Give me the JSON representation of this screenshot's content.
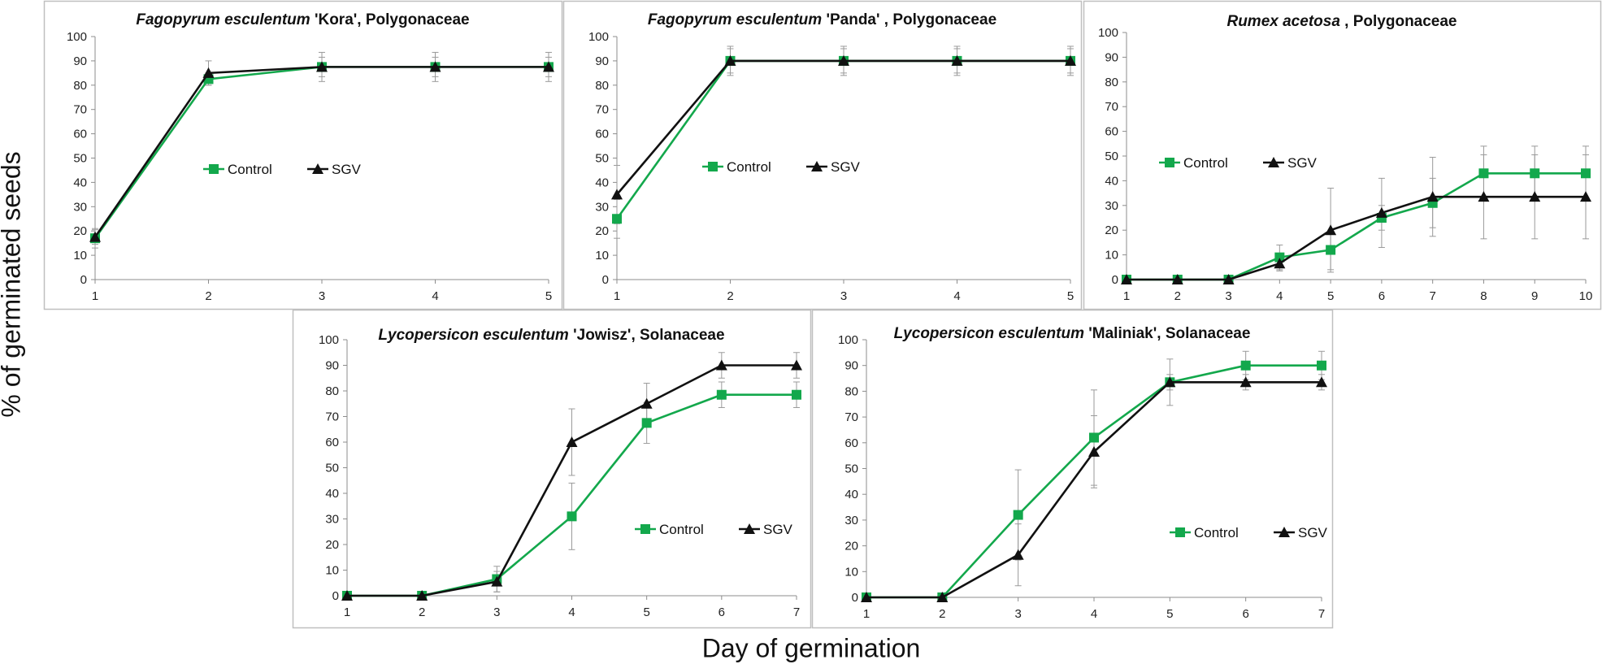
{
  "figure": {
    "ylabel": "% of germinated seeds",
    "xlabel": "Day of germination"
  },
  "colors": {
    "control": "#13a84c",
    "sgv": "#111111",
    "errorbar": "#9a9a9a",
    "frame": "#bfbfbf"
  },
  "chart_data": [
    {
      "type": "line",
      "title_species": "Fagopyrum esculentum",
      "title_rest": " 'Kora', Polygonaceae",
      "x": [
        1,
        2,
        3,
        4,
        5
      ],
      "ylim": [
        0,
        100
      ],
      "yticks": [
        0,
        10,
        20,
        30,
        40,
        50,
        60,
        70,
        80,
        90,
        100
      ],
      "legend_position": "center",
      "series": [
        {
          "name": "Control",
          "marker": "square",
          "values": [
            17,
            82.5,
            87.5,
            87.5,
            87.5
          ],
          "error": [
            4,
            2.5,
            6,
            6,
            6
          ]
        },
        {
          "name": "SGV",
          "marker": "triangle",
          "values": [
            17.5,
            85,
            87.5,
            87.5,
            87.5
          ],
          "error": [
            3,
            5,
            4,
            4,
            4
          ]
        }
      ]
    },
    {
      "type": "line",
      "title_species": "Fagopyrum esculentum",
      "title_rest": " 'Panda' , Polygonaceae",
      "x": [
        1,
        2,
        3,
        4,
        5
      ],
      "ylim": [
        0,
        100
      ],
      "yticks": [
        0,
        10,
        20,
        30,
        40,
        50,
        60,
        70,
        80,
        90,
        100
      ],
      "legend_position": "center",
      "series": [
        {
          "name": "Control",
          "marker": "square",
          "values": [
            25,
            90,
            90,
            90,
            90
          ],
          "error": [
            8,
            6,
            6,
            6,
            6
          ]
        },
        {
          "name": "SGV",
          "marker": "triangle",
          "values": [
            35,
            90,
            90,
            90,
            90
          ],
          "error": [
            12,
            5,
            5,
            5,
            5
          ]
        }
      ]
    },
    {
      "type": "line",
      "title_species": "Rumex acetosa",
      "title_rest": " , Polygonaceae",
      "x": [
        1,
        2,
        3,
        4,
        5,
        6,
        7,
        8,
        9,
        10
      ],
      "ylim": [
        0,
        100
      ],
      "yticks": [
        0,
        10,
        20,
        30,
        40,
        50,
        60,
        70,
        80,
        90,
        100
      ],
      "legend_position": "upper-left",
      "series": [
        {
          "name": "Control",
          "marker": "square",
          "values": [
            0,
            0,
            0,
            9,
            12,
            25,
            31,
            43,
            43,
            43
          ],
          "error": [
            0,
            0,
            0,
            5,
            8,
            5,
            10,
            11,
            11,
            11
          ]
        },
        {
          "name": "SGV",
          "marker": "triangle",
          "values": [
            0,
            0,
            0,
            6.5,
            20,
            27,
            33.5,
            33.5,
            33.5,
            33.5
          ],
          "error": [
            0,
            0,
            0,
            3,
            17,
            14,
            16,
            17,
            17,
            17
          ]
        }
      ]
    },
    {
      "type": "line",
      "title_species": "Lycopersicon esculentum",
      "title_rest": " 'Jowisz', Solanaceae",
      "x": [
        1,
        2,
        3,
        4,
        5,
        6,
        7
      ],
      "ylim": [
        0,
        100
      ],
      "yticks": [
        0,
        10,
        20,
        30,
        40,
        50,
        60,
        70,
        80,
        90,
        100
      ],
      "legend_position": "lower-right",
      "series": [
        {
          "name": "Control",
          "marker": "square",
          "values": [
            0,
            0,
            6.5,
            31,
            67.5,
            78.5,
            78.5
          ],
          "error": [
            1,
            1,
            5,
            13,
            8,
            5,
            5
          ]
        },
        {
          "name": "SGV",
          "marker": "triangle",
          "values": [
            0,
            0,
            5.5,
            60,
            75,
            90,
            90
          ],
          "error": [
            1,
            1,
            4,
            13,
            8,
            5,
            5
          ]
        }
      ]
    },
    {
      "type": "line",
      "title_species": "Lycopersicon esculentum",
      "title_rest": " 'Maliniak', Solanaceae",
      "x": [
        1,
        2,
        3,
        4,
        5,
        6,
        7
      ],
      "ylim": [
        0,
        100
      ],
      "yticks": [
        0,
        10,
        20,
        30,
        40,
        50,
        60,
        70,
        80,
        90,
        100
      ],
      "legend_position": "lower-right",
      "series": [
        {
          "name": "Control",
          "marker": "square",
          "values": [
            0,
            0,
            32,
            62,
            83.5,
            90,
            90
          ],
          "error": [
            0.5,
            0.5,
            17.5,
            18.5,
            9,
            5.5,
            5.5
          ]
        },
        {
          "name": "SGV",
          "marker": "triangle",
          "values": [
            0,
            0,
            16.5,
            56.5,
            83.5,
            83.5,
            83.5
          ],
          "error": [
            0.5,
            0.5,
            12,
            14,
            3,
            3,
            3
          ]
        }
      ]
    }
  ]
}
